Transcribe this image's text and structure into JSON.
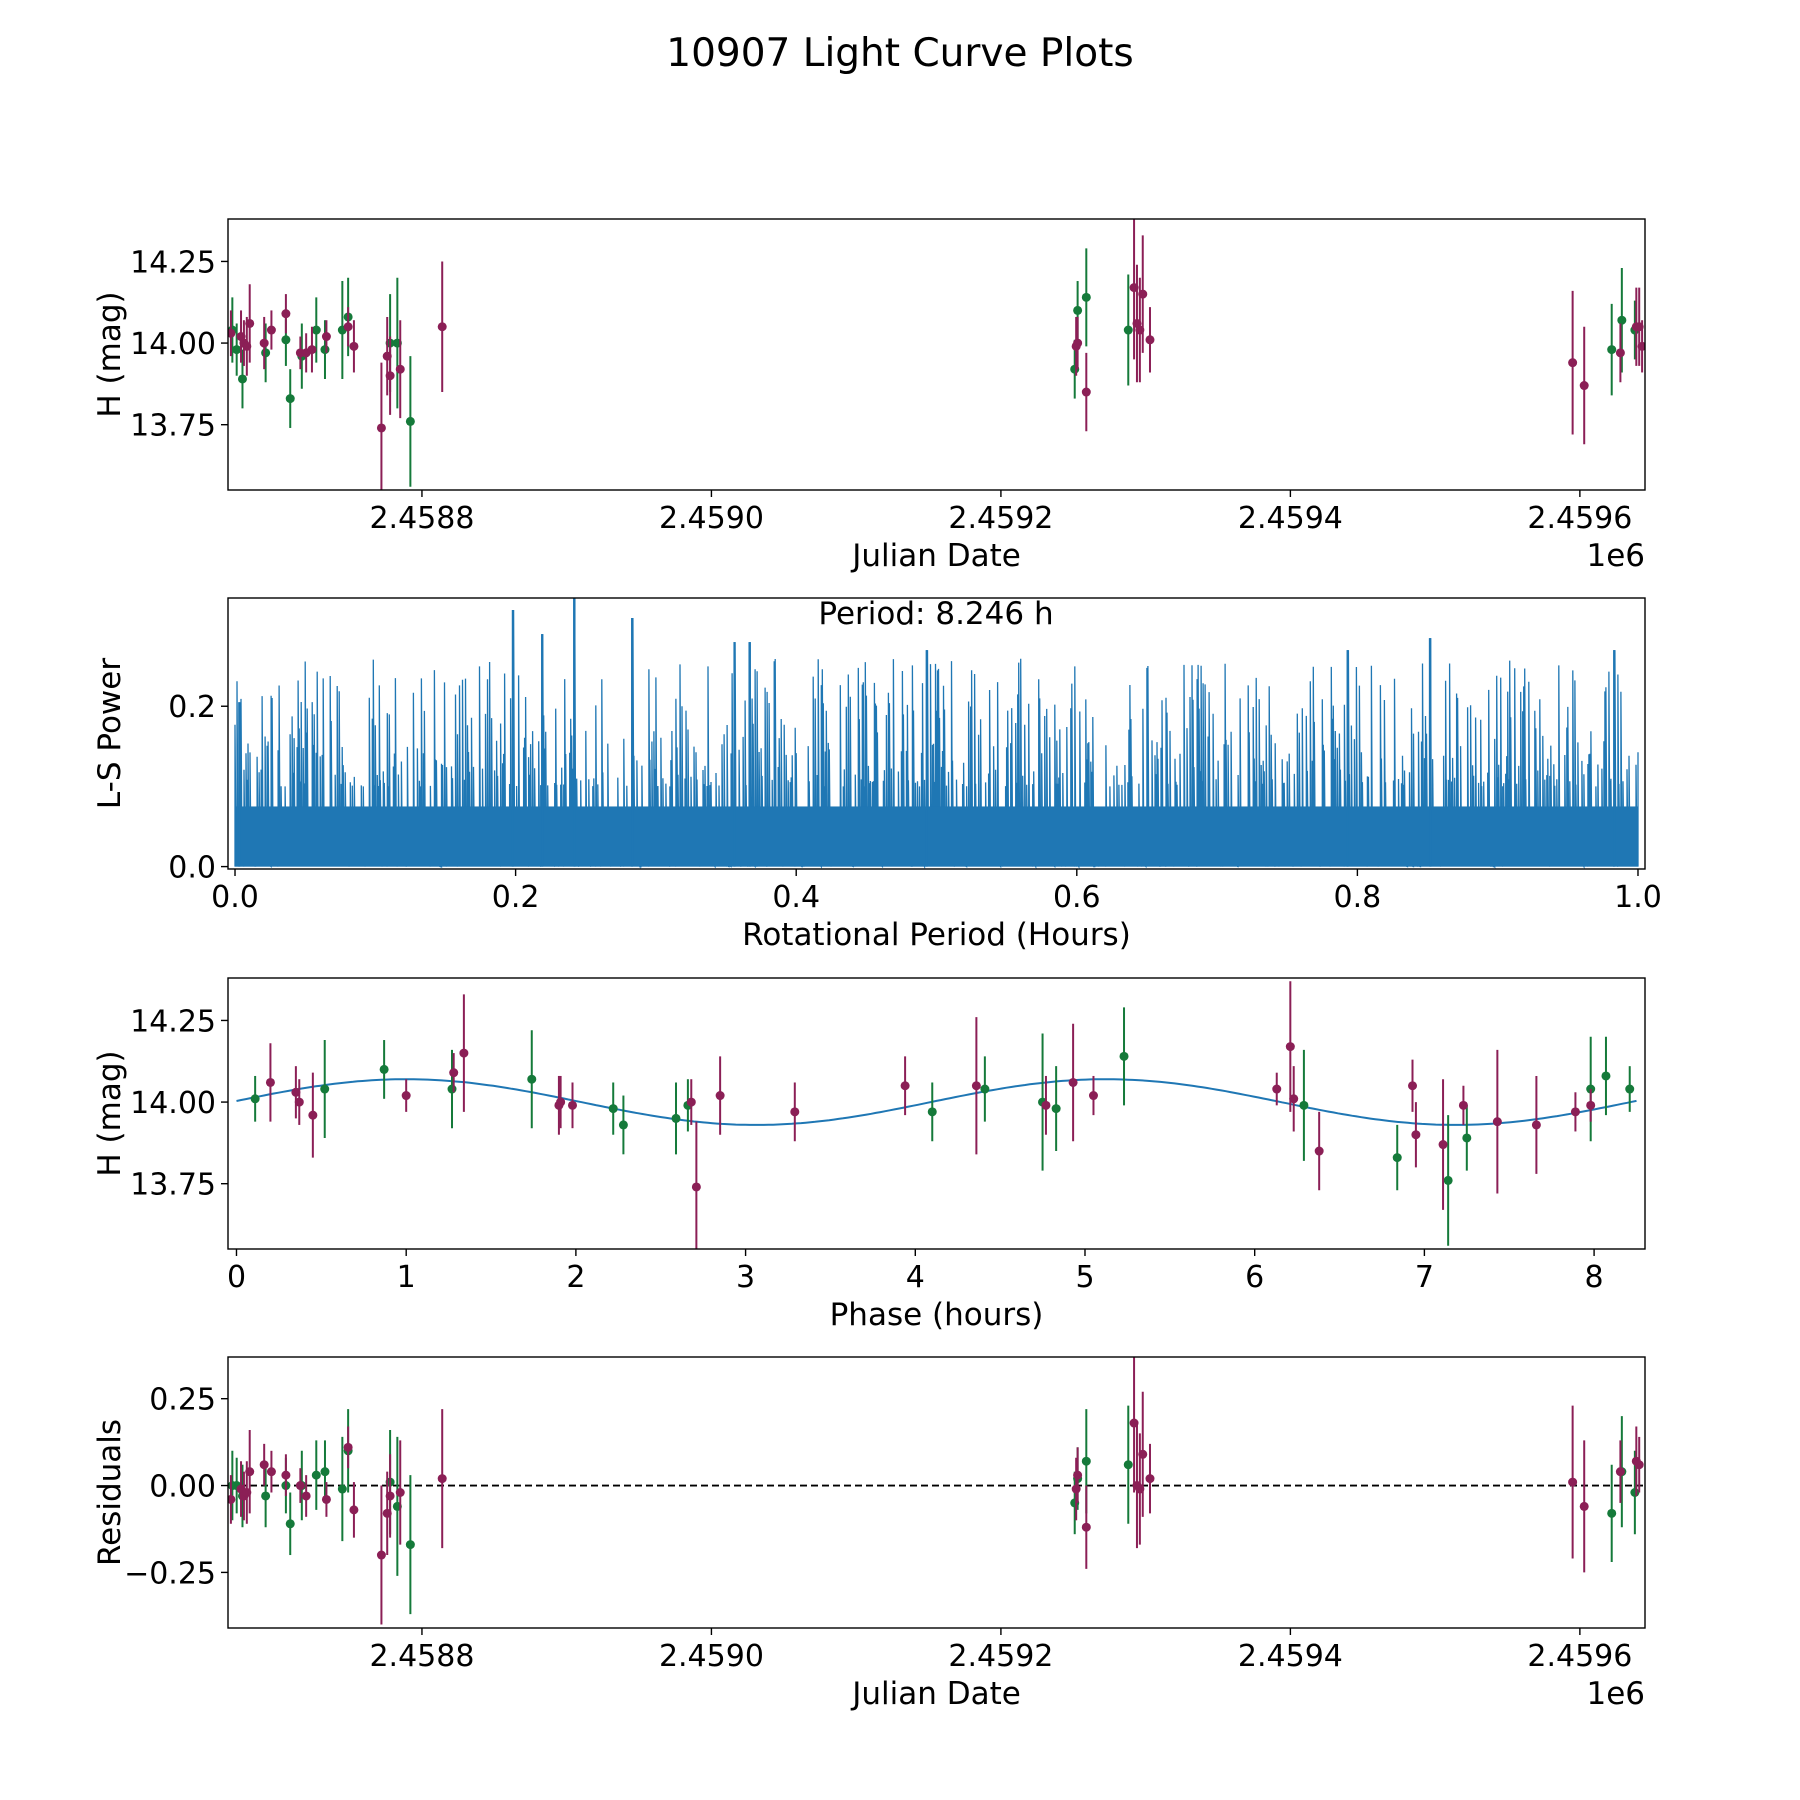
{
  "figure": {
    "title": "10907 Light Curve Plots"
  },
  "colors": {
    "green": "#157a3a",
    "maroon": "#8b1f56",
    "blue": "#1f77b4",
    "dashed": "#000000"
  },
  "chart_data": [
    {
      "id": "panel1",
      "type": "scatter",
      "title": "",
      "xlabel": "Julian Date",
      "ylabel": "H (mag)",
      "x_offset_label": "1e6",
      "xlim": [
        2458666,
        2459645
      ],
      "ylim": [
        13.55,
        14.38
      ],
      "xticks": [
        2458800,
        2459000,
        2459200,
        2459400,
        2459600
      ],
      "xtick_labels": [
        "2.4588",
        "2.4590",
        "2.4592",
        "2.4594",
        "2.4596"
      ],
      "yticks": [
        13.75,
        14.0,
        14.25
      ],
      "ytick_labels": [
        "13.75",
        "14.00",
        "14.25"
      ],
      "series": [
        {
          "name": "green",
          "points": [
            [
              2458669,
              14.04,
              0.1
            ],
            [
              2458672,
              13.98,
              0.08
            ],
            [
              2458676,
              13.89,
              0.09
            ],
            [
              2458692,
              13.97,
              0.09
            ],
            [
              2458706,
              14.01,
              0.08
            ],
            [
              2458709,
              13.83,
              0.09
            ],
            [
              2458717,
              13.96,
              0.1
            ],
            [
              2458727,
              14.04,
              0.1
            ],
            [
              2458733,
              13.98,
              0.09
            ],
            [
              2458745,
              14.04,
              0.15
            ],
            [
              2458749,
              14.08,
              0.12
            ],
            [
              2458778,
              14.0,
              0.15
            ],
            [
              2458783,
              14.0,
              0.2
            ],
            [
              2458792,
              13.76,
              0.2
            ],
            [
              2459251,
              13.92,
              0.09
            ],
            [
              2459253,
              14.1,
              0.09
            ],
            [
              2459259,
              14.14,
              0.15
            ],
            [
              2459288,
              14.04,
              0.17
            ],
            [
              2459622,
              13.98,
              0.14
            ],
            [
              2459629,
              14.07,
              0.16
            ],
            [
              2459638,
              14.04,
              0.09
            ]
          ]
        },
        {
          "name": "maroon",
          "points": [
            [
              2458668,
              14.03,
              0.07
            ],
            [
              2458675,
              14.02,
              0.08
            ],
            [
              2458677,
              14.0,
              0.07
            ],
            [
              2458679,
              13.99,
              0.09
            ],
            [
              2458681,
              14.06,
              0.12
            ],
            [
              2458691,
              14.0,
              0.08
            ],
            [
              2458696,
              14.04,
              0.06
            ],
            [
              2458706,
              14.09,
              0.06
            ],
            [
              2458716,
              13.97,
              0.05
            ],
            [
              2458720,
              13.97,
              0.06
            ],
            [
              2458724,
              13.98,
              0.07
            ],
            [
              2458734,
              14.02,
              0.05
            ],
            [
              2458749,
              14.05,
              0.06
            ],
            [
              2458753,
              13.99,
              0.08
            ],
            [
              2458772,
              13.74,
              0.2
            ],
            [
              2458776,
              13.96,
              0.12
            ],
            [
              2458778,
              13.9,
              0.12
            ],
            [
              2458785,
              13.92,
              0.15
            ],
            [
              2458814,
              14.05,
              0.2
            ],
            [
              2459252,
              13.99,
              0.09
            ],
            [
              2459253,
              14.0,
              0.08
            ],
            [
              2459259,
              13.85,
              0.12
            ],
            [
              2459292,
              14.17,
              0.22
            ],
            [
              2459294,
              14.06,
              0.18
            ],
            [
              2459296,
              14.04,
              0.16
            ],
            [
              2459298,
              14.15,
              0.18
            ],
            [
              2459303,
              14.01,
              0.1
            ],
            [
              2459595,
              13.94,
              0.22
            ],
            [
              2459603,
              13.87,
              0.18
            ],
            [
              2459628,
              13.97,
              0.09
            ],
            [
              2459639,
              14.05,
              0.12
            ],
            [
              2459641,
              14.05,
              0.12
            ],
            [
              2459643,
              13.99,
              0.08
            ]
          ]
        }
      ]
    },
    {
      "id": "panel2",
      "type": "line",
      "title": "",
      "xlabel": "Rotational Period (Hours)",
      "ylabel": "L-S Power",
      "annotation": "Period: 8.246 h",
      "xlim": [
        -0.005,
        1.005
      ],
      "ylim": [
        -0.003,
        0.335
      ],
      "xticks": [
        0.0,
        0.2,
        0.4,
        0.6,
        0.8,
        1.0
      ],
      "xtick_labels": [
        "0.0",
        "0.2",
        "0.4",
        "0.6",
        "0.8",
        "1.0"
      ],
      "yticks": [
        0.0,
        0.2
      ],
      "ytick_labels": [
        "0.0",
        "0.2"
      ],
      "periodogram": {
        "x_range": [
          0.0,
          1.0
        ],
        "base_level": 0.075,
        "typical_peak_range": [
          0.1,
          0.26
        ],
        "tallest_peaks": [
          {
            "x": 0.242,
            "power": 0.335
          },
          {
            "x": 0.198,
            "power": 0.32
          },
          {
            "x": 0.283,
            "power": 0.31
          },
          {
            "x": 0.219,
            "power": 0.29
          },
          {
            "x": 0.852,
            "power": 0.285
          },
          {
            "x": 0.367,
            "power": 0.28
          },
          {
            "x": 0.356,
            "power": 0.28
          },
          {
            "x": 0.983,
            "power": 0.27
          },
          {
            "x": 0.493,
            "power": 0.27
          },
          {
            "x": 0.793,
            "power": 0.27
          },
          {
            "x": 0.003,
            "power": 0.205
          }
        ]
      }
    },
    {
      "id": "panel3",
      "type": "scatter",
      "title": "",
      "xlabel": "Phase (hours)",
      "ylabel": "H (mag)",
      "xlim": [
        -0.05,
        8.3
      ],
      "ylim": [
        13.55,
        14.38
      ],
      "xticks": [
        0,
        1,
        2,
        3,
        4,
        5,
        6,
        7,
        8
      ],
      "xtick_labels": [
        "0",
        "1",
        "2",
        "3",
        "4",
        "5",
        "6",
        "7",
        "8"
      ],
      "yticks": [
        13.75,
        14.0,
        14.25
      ],
      "ytick_labels": [
        "13.75",
        "14.00",
        "14.25"
      ],
      "model": {
        "name": "fit",
        "mean": 14.0,
        "amplitude": 0.07,
        "period_hours": 4.123,
        "phase0": 1.0
      },
      "series": [
        {
          "name": "green",
          "points": [
            [
              0.11,
              14.01,
              0.07
            ],
            [
              0.52,
              14.04,
              0.15
            ],
            [
              0.87,
              14.1,
              0.09
            ],
            [
              1.27,
              14.04,
              0.12
            ],
            [
              1.74,
              14.07,
              0.15
            ],
            [
              2.22,
              13.98,
              0.08
            ],
            [
              2.28,
              13.93,
              0.09
            ],
            [
              2.59,
              13.95,
              0.11
            ],
            [
              2.66,
              13.99,
              0.08
            ],
            [
              4.1,
              13.97,
              0.09
            ],
            [
              4.41,
              14.04,
              0.1
            ],
            [
              4.75,
              14.0,
              0.21
            ],
            [
              4.83,
              13.98,
              0.13
            ],
            [
              5.23,
              14.14,
              0.15
            ],
            [
              6.29,
              13.99,
              0.17
            ],
            [
              6.84,
              13.83,
              0.1
            ],
            [
              7.14,
              13.76,
              0.2
            ],
            [
              7.25,
              13.89,
              0.1
            ],
            [
              7.98,
              14.04,
              0.16
            ],
            [
              8.07,
              14.08,
              0.12
            ],
            [
              8.21,
              14.04,
              0.07
            ]
          ]
        },
        {
          "name": "maroon",
          "points": [
            [
              0.2,
              14.06,
              0.12
            ],
            [
              0.35,
              14.03,
              0.08
            ],
            [
              0.37,
              14.0,
              0.07
            ],
            [
              0.45,
              13.96,
              0.13
            ],
            [
              1.0,
              14.02,
              0.05
            ],
            [
              1.28,
              14.09,
              0.06
            ],
            [
              1.34,
              14.15,
              0.18
            ],
            [
              1.9,
              13.99,
              0.09
            ],
            [
              1.91,
              14.0,
              0.08
            ],
            [
              1.98,
              13.99,
              0.07
            ],
            [
              2.68,
              14.0,
              0.07
            ],
            [
              2.71,
              13.74,
              0.2
            ],
            [
              2.85,
              14.02,
              0.12
            ],
            [
              3.29,
              13.97,
              0.09
            ],
            [
              3.94,
              14.05,
              0.09
            ],
            [
              4.36,
              14.05,
              0.21
            ],
            [
              4.77,
              13.99,
              0.09
            ],
            [
              4.93,
              14.06,
              0.18
            ],
            [
              5.05,
              14.02,
              0.06
            ],
            [
              6.13,
              14.04,
              0.05
            ],
            [
              6.21,
              14.17,
              0.2
            ],
            [
              6.23,
              14.01,
              0.1
            ],
            [
              6.38,
              13.85,
              0.12
            ],
            [
              6.93,
              14.05,
              0.08
            ],
            [
              6.95,
              13.9,
              0.1
            ],
            [
              7.11,
              13.87,
              0.2
            ],
            [
              7.23,
              13.99,
              0.06
            ],
            [
              7.43,
              13.94,
              0.22
            ],
            [
              7.66,
              13.93,
              0.15
            ],
            [
              7.89,
              13.97,
              0.06
            ],
            [
              7.98,
              13.99,
              0.05
            ]
          ]
        }
      ]
    },
    {
      "id": "panel4",
      "type": "scatter",
      "title": "",
      "xlabel": "Julian Date",
      "ylabel": "Residuals",
      "x_offset_label": "1e6",
      "xlim": [
        2458666,
        2459645
      ],
      "ylim": [
        -0.41,
        0.37
      ],
      "xticks": [
        2458800,
        2459000,
        2459200,
        2459400,
        2459600
      ],
      "xtick_labels": [
        "2.4588",
        "2.4590",
        "2.4592",
        "2.4594",
        "2.4596"
      ],
      "yticks": [
        -0.25,
        0.0,
        0.25
      ],
      "ytick_labels": [
        "−0.25",
        "0.00",
        "0.25"
      ],
      "reference_line": 0.0,
      "series": [
        {
          "name": "green",
          "points": [
            [
              2458669,
              0.0,
              0.1
            ],
            [
              2458672,
              0.0,
              0.08
            ],
            [
              2458676,
              -0.03,
              0.09
            ],
            [
              2458692,
              -0.03,
              0.09
            ],
            [
              2458706,
              0.0,
              0.08
            ],
            [
              2458709,
              -0.11,
              0.09
            ],
            [
              2458717,
              0.0,
              0.1
            ],
            [
              2458727,
              0.03,
              0.1
            ],
            [
              2458733,
              0.04,
              0.09
            ],
            [
              2458745,
              -0.01,
              0.15
            ],
            [
              2458749,
              0.1,
              0.12
            ],
            [
              2458778,
              0.01,
              0.15
            ],
            [
              2458783,
              -0.06,
              0.2
            ],
            [
              2458792,
              -0.17,
              0.2
            ],
            [
              2459251,
              -0.05,
              0.09
            ],
            [
              2459253,
              0.02,
              0.09
            ],
            [
              2459259,
              0.07,
              0.15
            ],
            [
              2459288,
              0.06,
              0.17
            ],
            [
              2459622,
              -0.08,
              0.14
            ],
            [
              2459629,
              0.04,
              0.16
            ],
            [
              2459638,
              -0.02,
              0.12
            ]
          ]
        },
        {
          "name": "maroon",
          "points": [
            [
              2458668,
              -0.04,
              0.07
            ],
            [
              2458675,
              -0.01,
              0.08
            ],
            [
              2458677,
              -0.03,
              0.07
            ],
            [
              2458679,
              -0.02,
              0.09
            ],
            [
              2458681,
              0.04,
              0.12
            ],
            [
              2458691,
              0.06,
              0.06
            ],
            [
              2458696,
              0.04,
              0.06
            ],
            [
              2458706,
              0.03,
              0.06
            ],
            [
              2458716,
              0.0,
              0.05
            ],
            [
              2458720,
              -0.03,
              0.06
            ],
            [
              2458734,
              -0.04,
              0.05
            ],
            [
              2458749,
              0.11,
              0.06
            ],
            [
              2458753,
              -0.07,
              0.08
            ],
            [
              2458772,
              -0.2,
              0.2
            ],
            [
              2458776,
              -0.08,
              0.12
            ],
            [
              2458778,
              -0.03,
              0.12
            ],
            [
              2458785,
              -0.02,
              0.15
            ],
            [
              2458814,
              0.02,
              0.2
            ],
            [
              2459252,
              -0.01,
              0.09
            ],
            [
              2459253,
              0.03,
              0.08
            ],
            [
              2459259,
              -0.12,
              0.12
            ],
            [
              2459292,
              0.18,
              0.2
            ],
            [
              2459294,
              0.0,
              0.18
            ],
            [
              2459296,
              -0.01,
              0.16
            ],
            [
              2459298,
              0.09,
              0.18
            ],
            [
              2459303,
              0.02,
              0.1
            ],
            [
              2459595,
              0.01,
              0.22
            ],
            [
              2459603,
              -0.06,
              0.19
            ],
            [
              2459628,
              0.04,
              0.09
            ],
            [
              2459639,
              0.07,
              0.1
            ],
            [
              2459641,
              0.06,
              0.08
            ]
          ]
        }
      ]
    }
  ]
}
